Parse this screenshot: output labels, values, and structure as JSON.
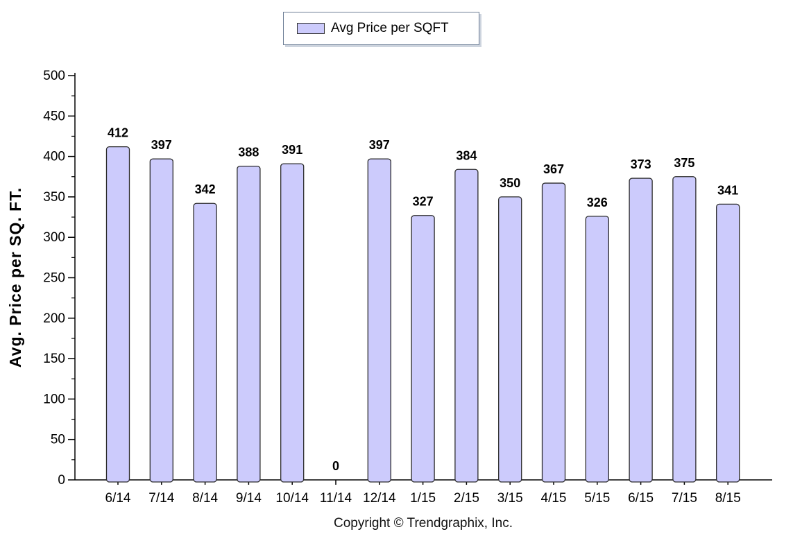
{
  "chart_data": {
    "type": "bar",
    "categories": [
      "6/14",
      "7/14",
      "8/14",
      "9/14",
      "10/14",
      "11/14",
      "12/14",
      "1/15",
      "2/15",
      "3/15",
      "4/15",
      "5/15",
      "6/15",
      "7/15",
      "8/15"
    ],
    "series": [
      {
        "name": "Avg Price per SQFT",
        "values": [
          412,
          397,
          342,
          388,
          391,
          0,
          397,
          327,
          384,
          350,
          367,
          326,
          373,
          375,
          341
        ],
        "color": "#cccbfc",
        "border_color": "#2b2b2b"
      }
    ],
    "value_labels": [
      "412",
      "397",
      "342",
      "388",
      "391",
      "0",
      "397",
      "327",
      "384",
      "350",
      "367",
      "326",
      "373",
      "375",
      "341"
    ],
    "ylabel": "Avg. Price per SQ. FT.",
    "ylim": [
      0,
      500
    ],
    "yticks": [
      0,
      50,
      100,
      150,
      200,
      250,
      300,
      350,
      400,
      450,
      500
    ],
    "grid": false,
    "legend_position": "top-center"
  },
  "legend": {
    "label": "Avg Price per SQFT",
    "swatch_color": "#cccbfc"
  },
  "footer": {
    "copyright": "Copyright © Trendgraphix, Inc."
  }
}
